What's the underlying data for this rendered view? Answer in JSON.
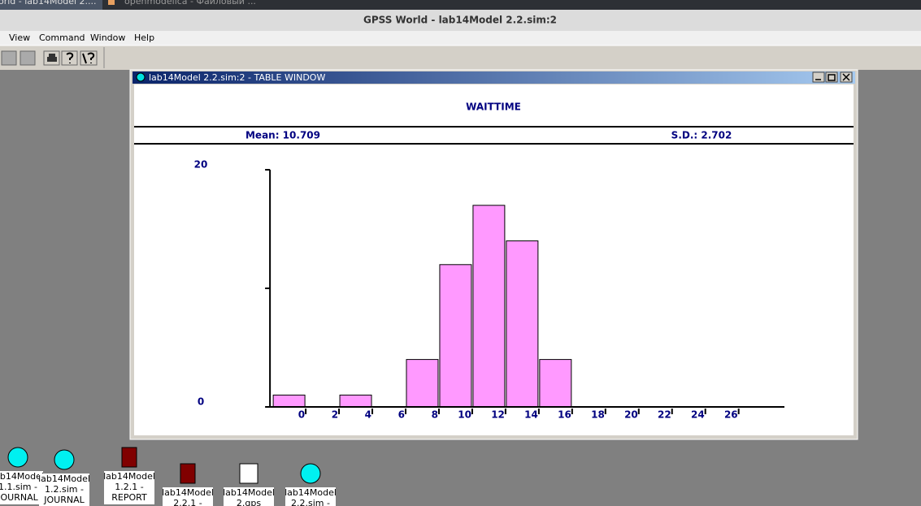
{
  "taskbar": {
    "items": [
      "orld - lab14Model 2....",
      "openmodelica - Файловый ..."
    ]
  },
  "app": {
    "title": "GPSS World - lab14Model 2.2.sim:2",
    "menu": [
      "View",
      "Command",
      "Window",
      "Help"
    ]
  },
  "window": {
    "title": "lab14Model 2.2.sim:2  -  TABLE WINDOW"
  },
  "chart_data": {
    "type": "histogram",
    "title": "WAITTIME",
    "mean_label": "Mean: 10.709",
    "sd_label": "S.D.: 2.702",
    "bins": [
      -2,
      0,
      2,
      4,
      6,
      8,
      10,
      12,
      14,
      16
    ],
    "counts": [
      1,
      0,
      1,
      0,
      4,
      12,
      17,
      14,
      4
    ],
    "color": "#ff99ff",
    "xlim": [
      -2.25,
      28.75
    ],
    "xticks": [
      0,
      2,
      4,
      6,
      8,
      10,
      12,
      14,
      16,
      18,
      20,
      22,
      24,
      26
    ],
    "ylim": [
      0,
      20
    ],
    "yticks": [
      0,
      20
    ],
    "minor_yticks": [
      10
    ]
  },
  "desktop": {
    "icons": [
      [
        "lab14Model",
        "1.1.sim  -",
        "JOURNAL"
      ],
      [
        "lab14Model",
        "1.2.sim  -",
        "JOURNAL"
      ],
      [
        "lab14Model",
        "1.2.1  -",
        "REPORT"
      ],
      [
        "lab14Model",
        "2.2.1  -"
      ],
      [
        "lab14Model",
        "2.gps"
      ],
      [
        "lab14Model",
        "2.2.sim  -"
      ]
    ]
  }
}
